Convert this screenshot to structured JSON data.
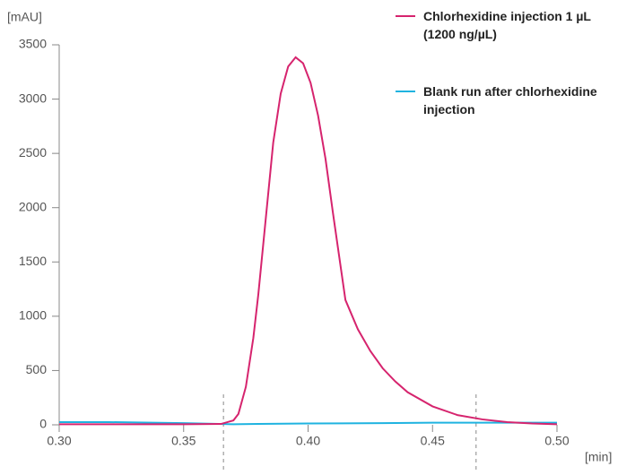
{
  "chart_data": {
    "type": "line",
    "ylabel": "[mAU]",
    "xlabel": "[min]",
    "xlim": [
      0.3,
      0.5
    ],
    "ylim": [
      0,
      3500
    ],
    "xticks": [
      {
        "value": 0.3,
        "label": "0.30"
      },
      0.35,
      {
        "value": 0.4,
        "label": "0.40"
      },
      0.45,
      {
        "value": 0.5,
        "label": "0.50"
      }
    ],
    "yticks": [
      0,
      500,
      1000,
      1500,
      2000,
      2500,
      3000,
      3500
    ],
    "vlines": [
      0.366,
      0.4675
    ],
    "series": [
      {
        "name": "Chlorhexidine injection 1 µL (1200 ng/µL)",
        "color": "#d6246e",
        "x": [
          0.3,
          0.35,
          0.365,
          0.37,
          0.372,
          0.375,
          0.378,
          0.38,
          0.383,
          0.386,
          0.389,
          0.392,
          0.395,
          0.398,
          0.401,
          0.404,
          0.407,
          0.41,
          0.415,
          0.42,
          0.425,
          0.43,
          0.435,
          0.44,
          0.45,
          0.46,
          0.47,
          0.48,
          0.49,
          0.5
        ],
        "values": [
          5,
          5,
          8,
          40,
          100,
          350,
          800,
          1200,
          1900,
          2600,
          3050,
          3300,
          3385,
          3330,
          3150,
          2850,
          2450,
          1950,
          1150,
          880,
          680,
          520,
          400,
          300,
          170,
          90,
          50,
          25,
          12,
          5
        ]
      },
      {
        "name": "Blank run after chlorhexidine injection",
        "color": "#1fb3e0",
        "x": [
          0.3,
          0.32,
          0.35,
          0.37,
          0.38,
          0.4,
          0.43,
          0.45,
          0.5
        ],
        "values": [
          25,
          25,
          15,
          5,
          8,
          12,
          15,
          20,
          20
        ]
      }
    ]
  }
}
